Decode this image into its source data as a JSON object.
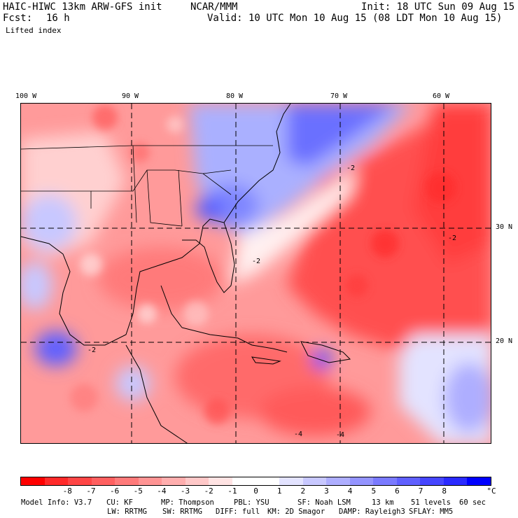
{
  "header": {
    "model_title": "HAIC-HIWC 13km ARW-GFS init",
    "org": "NCAR/MMM",
    "init": "Init: 18 UTC Sun 09 Aug 15",
    "fcst_label": "Fcst:",
    "fcst_value": "16 h",
    "valid": "Valid: 10 UTC Mon 10 Aug 15 (08 LDT Mon 10 Aug 15)",
    "field": "Lifted index"
  },
  "map": {
    "lon_labels": [
      "100 W",
      "90 W",
      "80 W",
      "70 W",
      "60 W"
    ],
    "lat_labels": [
      "30 N",
      "20 N"
    ],
    "contour_labels": [
      "-2",
      "-2",
      "-2",
      "-2",
      "-4",
      "-4"
    ]
  },
  "colorbar": {
    "colors": [
      "#ff0000",
      "#ff2a2a",
      "#ff4646",
      "#ff6060",
      "#ff7a7a",
      "#ff9494",
      "#ffaeae",
      "#ffc8c8",
      "#ffe3e3",
      "#ffffff",
      "#ffffff",
      "#e3e3ff",
      "#c8c8ff",
      "#aeaeff",
      "#9494ff",
      "#7a7aff",
      "#6060ff",
      "#4646ff",
      "#2a2aff",
      "#0000ff"
    ],
    "labels": [
      "-8",
      "-7",
      "-6",
      "-5",
      "-4",
      "-3",
      "-2",
      "-1",
      "0",
      "1",
      "2",
      "3",
      "4",
      "5",
      "6",
      "7",
      "8"
    ],
    "unit": "°C"
  },
  "model_info": {
    "line1": [
      "Model Info: V3.7",
      "CU: KF",
      "MP: Thompson",
      "PBL: YSU",
      "SF: Noah LSM",
      "13 km",
      "51 levels",
      "60 sec"
    ],
    "line2": [
      "LW: RRTMG",
      "SW: RRTMG",
      "DIFF: full",
      "KM: 2D Smagor",
      "DAMP: Rayleigh3",
      "SFLAY: MM5"
    ]
  }
}
